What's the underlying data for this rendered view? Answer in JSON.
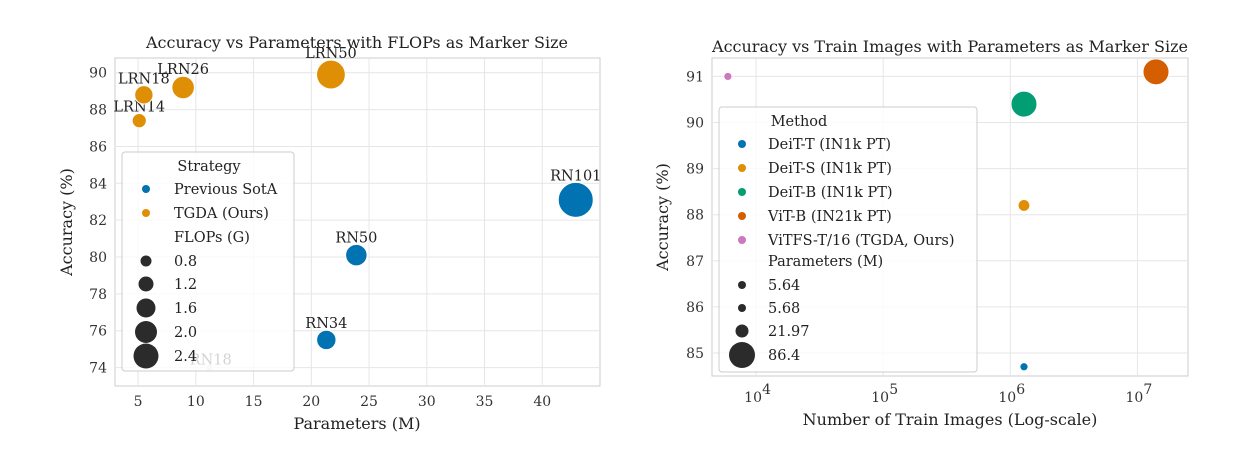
{
  "chart_data": [
    {
      "type": "scatter",
      "title": "Accuracy vs Parameters with FLOPs as Marker Size",
      "xlabel": "Parameters (M)",
      "ylabel": "Accuracy (%)",
      "xlim": [
        3,
        45
      ],
      "ylim": [
        73,
        90.8
      ],
      "xticks": [
        5,
        10,
        15,
        20,
        25,
        30,
        35,
        40
      ],
      "yticks": [
        74,
        76,
        78,
        80,
        82,
        84,
        86,
        88,
        90
      ],
      "grid": true,
      "legend_position": "lower-left",
      "legend_title": "Strategy",
      "size_legend_title": "FLOPs (G)",
      "size_legend_values": [
        "0.8",
        "1.2",
        "1.6",
        "2.0",
        "2.4"
      ],
      "series": [
        {
          "name": "Previous SotA",
          "color": "#0173b2",
          "points": [
            {
              "label": "RN18",
              "x": 11.2,
              "y": 74.0,
              "flops": 0.55
            },
            {
              "label": "RN34",
              "x": 21.3,
              "y": 75.5,
              "flops": 1.1
            },
            {
              "label": "RN50",
              "x": 23.9,
              "y": 80.1,
              "flops": 1.3
            },
            {
              "label": "RN101",
              "x": 42.9,
              "y": 83.1,
              "flops": 2.6
            }
          ]
        },
        {
          "name": "TGDA (Ours)",
          "color": "#de8f05",
          "points": [
            {
              "label": "LRN14",
              "x": 5.1,
              "y": 87.4,
              "flops": 0.6
            },
            {
              "label": "LRN18",
              "x": 5.5,
              "y": 88.8,
              "flops": 1.0
            },
            {
              "label": "LRN26",
              "x": 8.9,
              "y": 89.2,
              "flops": 1.4
            },
            {
              "label": "LRN50",
              "x": 21.7,
              "y": 89.9,
              "flops": 2.0
            }
          ]
        }
      ]
    },
    {
      "type": "scatter",
      "title": "Accuracy vs Train Images with Parameters as Marker Size",
      "xlabel": "Number of Train Images (Log-scale)",
      "ylabel": "Accuracy (%)",
      "xscale": "log",
      "xlim": [
        4500,
        25000000
      ],
      "ylim": [
        84.5,
        91.4
      ],
      "xtick_values": [
        10000,
        100000,
        1000000,
        10000000
      ],
      "xtick_bases": [
        "10",
        "10",
        "10",
        "10"
      ],
      "xtick_exponents": [
        "4",
        "5",
        "6",
        "7"
      ],
      "yticks": [
        85,
        86,
        87,
        88,
        89,
        90,
        91
      ],
      "grid": true,
      "legend_position": "lower-left",
      "legend_title": "Method",
      "size_legend_title": "Parameters (M)",
      "size_legend_values": [
        "5.64",
        "5.68",
        "21.97",
        "86.4"
      ],
      "series": [
        {
          "name": "DeiT-T (IN1k PT)",
          "color": "#0173b2",
          "points": [
            {
              "x": 1281167,
              "y": 84.7,
              "params": 5.7
            }
          ]
        },
        {
          "name": "DeiT-S (IN1k PT)",
          "color": "#de8f05",
          "points": [
            {
              "x": 1281167,
              "y": 88.2,
              "params": 22.0
            }
          ]
        },
        {
          "name": "DeiT-B (IN1k PT)",
          "color": "#029e73",
          "points": [
            {
              "x": 1281167,
              "y": 90.4,
              "params": 86.4
            }
          ]
        },
        {
          "name": "ViT-B (IN21k PT)",
          "color": "#d55e00",
          "points": [
            {
              "x": 14000000,
              "y": 91.1,
              "params": 86.4
            }
          ]
        },
        {
          "name": "ViTFS-T/16 (TGDA, Ours)",
          "color": "#cc78bc",
          "points": [
            {
              "x": 6000,
              "y": 91.0,
              "params": 5.64
            }
          ]
        }
      ]
    }
  ]
}
